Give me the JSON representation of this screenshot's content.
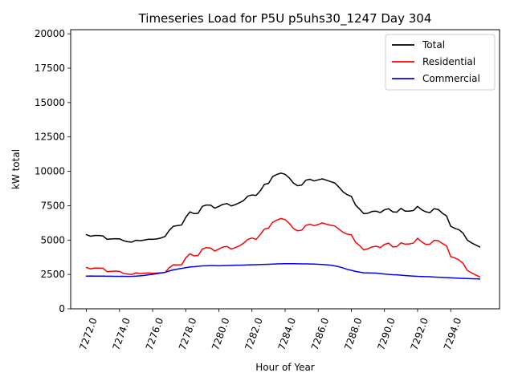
{
  "chart_data": {
    "type": "line",
    "title": "Timeseries Load for P5U p5uhs30_1247  Day 304",
    "xlabel": "Hour of Year",
    "ylabel": "kW total",
    "xlim": [
      7271.05,
      7296.95
    ],
    "ylim": [
      0,
      20300
    ],
    "xticks": [
      7272.0,
      7274.0,
      7276.0,
      7278.0,
      7280.0,
      7282.0,
      7284.0,
      7286.0,
      7288.0,
      7290.0,
      7292.0,
      7294.0
    ],
    "xtick_labels": [
      "7272.0",
      "7274.0",
      "7276.0",
      "7278.0",
      "7280.0",
      "7282.0",
      "7284.0",
      "7286.0",
      "7288.0",
      "7290.0",
      "7292.0",
      "7294.0"
    ],
    "yticks": [
      0,
      2500,
      5000,
      7500,
      10000,
      12500,
      15000,
      17500,
      20000
    ],
    "ytick_labels": [
      "0",
      "2500",
      "5000",
      "7500",
      "10000",
      "12500",
      "15000",
      "17500",
      "20000"
    ],
    "legend_position": "top-right",
    "x_start": 7272.0,
    "x_step": 0.25,
    "series": [
      {
        "name": "Total",
        "color": "#000000",
        "values": [
          5390,
          5280,
          5330,
          5330,
          5300,
          5050,
          5080,
          5100,
          5090,
          4950,
          4880,
          4850,
          4990,
          4950,
          5000,
          5060,
          5050,
          5080,
          5150,
          5260,
          5700,
          6000,
          6050,
          6100,
          6650,
          7050,
          6920,
          6950,
          7450,
          7550,
          7540,
          7320,
          7450,
          7600,
          7650,
          7480,
          7580,
          7720,
          7880,
          8200,
          8280,
          8250,
          8580,
          9050,
          9120,
          9620,
          9770,
          9870,
          9780,
          9520,
          9150,
          8950,
          9000,
          9350,
          9420,
          9300,
          9380,
          9450,
          9350,
          9250,
          9150,
          8850,
          8500,
          8300,
          8180,
          7550,
          7250,
          6920,
          6950,
          7080,
          7100,
          7000,
          7200,
          7280,
          7050,
          7030,
          7300,
          7100,
          7100,
          7150,
          7450,
          7200,
          7050,
          7000,
          7280,
          7220,
          6950,
          6750,
          6000,
          5850,
          5750,
          5500,
          5000,
          4800,
          4650,
          4500
        ]
      },
      {
        "name": "Residential",
        "color": "#ff0000",
        "values": [
          3010,
          2900,
          2970,
          2960,
          2950,
          2700,
          2730,
          2740,
          2720,
          2570,
          2520,
          2500,
          2620,
          2560,
          2590,
          2610,
          2580,
          2600,
          2620,
          2640,
          2980,
          3200,
          3190,
          3200,
          3700,
          4000,
          3850,
          3880,
          4350,
          4450,
          4420,
          4200,
          4350,
          4500,
          4530,
          4350,
          4450,
          4580,
          4780,
          5050,
          5150,
          5050,
          5400,
          5800,
          5870,
          6300,
          6450,
          6570,
          6480,
          6220,
          5850,
          5670,
          5720,
          6070,
          6150,
          6050,
          6130,
          6250,
          6150,
          6080,
          6020,
          5800,
          5560,
          5430,
          5380,
          4850,
          4600,
          4280,
          4370,
          4500,
          4550,
          4450,
          4680,
          4780,
          4500,
          4520,
          4800,
          4700,
          4720,
          4780,
          5130,
          4870,
          4680,
          4700,
          4980,
          4950,
          4750,
          4580,
          3800,
          3700,
          3550,
          3300,
          2800,
          2620,
          2470,
          2320
        ]
      },
      {
        "name": "Commercial",
        "color": "#0000ff",
        "values": [
          2380,
          2385,
          2380,
          2378,
          2375,
          2370,
          2368,
          2365,
          2362,
          2360,
          2358,
          2360,
          2375,
          2400,
          2430,
          2470,
          2510,
          2550,
          2600,
          2650,
          2750,
          2830,
          2890,
          2940,
          2990,
          3040,
          3060,
          3090,
          3120,
          3130,
          3140,
          3145,
          3130,
          3140,
          3150,
          3160,
          3170,
          3175,
          3180,
          3190,
          3200,
          3210,
          3220,
          3230,
          3240,
          3255,
          3265,
          3275,
          3280,
          3280,
          3280,
          3275,
          3270,
          3265,
          3260,
          3250,
          3240,
          3225,
          3200,
          3170,
          3120,
          3060,
          2970,
          2870,
          2800,
          2720,
          2670,
          2620,
          2610,
          2600,
          2595,
          2560,
          2530,
          2500,
          2480,
          2470,
          2440,
          2420,
          2400,
          2380,
          2360,
          2350,
          2340,
          2330,
          2310,
          2300,
          2285,
          2270,
          2255,
          2240,
          2225,
          2210,
          2200,
          2190,
          2180,
          2170
        ]
      }
    ]
  }
}
